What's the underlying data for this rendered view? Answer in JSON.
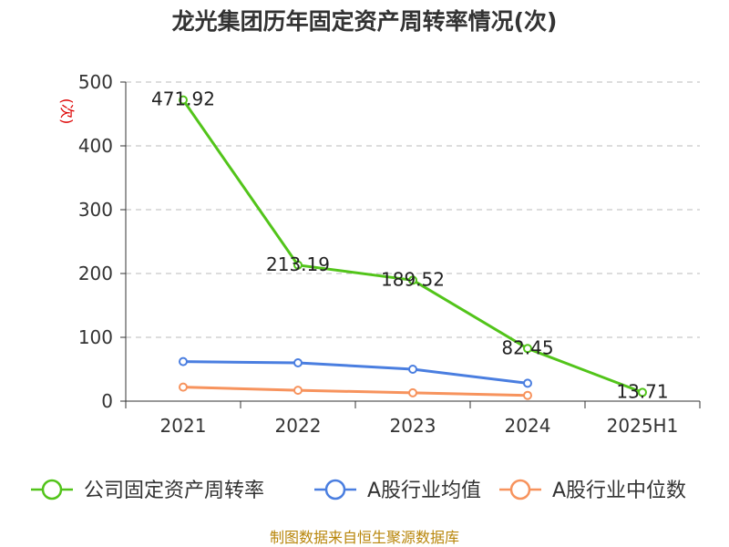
{
  "chart_data": {
    "type": "line",
    "title": "龙光集团历年固定资产周转率情况(次)",
    "y_unit": "(次)",
    "categories": [
      "2021",
      "2022",
      "2023",
      "2024",
      "2025H1"
    ],
    "ylim": [
      0,
      500
    ],
    "yticks": [
      0,
      100,
      200,
      300,
      400,
      500
    ],
    "grid": true,
    "legend_position": "bottom",
    "series": [
      {
        "name": "公司固定资产周转率",
        "color": "#52c41a",
        "values": [
          471.92,
          213.19,
          189.52,
          82.45,
          13.71
        ],
        "labels": [
          "471.92",
          "213.19",
          "189.52",
          "82.45",
          "13.71"
        ]
      },
      {
        "name": "A股行业均值",
        "color": "#4a7ee0",
        "values": [
          62,
          60,
          50,
          28,
          null
        ]
      },
      {
        "name": "A股行业中位数",
        "color": "#f7935d",
        "values": [
          22,
          17,
          13,
          9,
          null
        ]
      }
    ],
    "source": "制图数据来自恒生聚源数据库"
  }
}
